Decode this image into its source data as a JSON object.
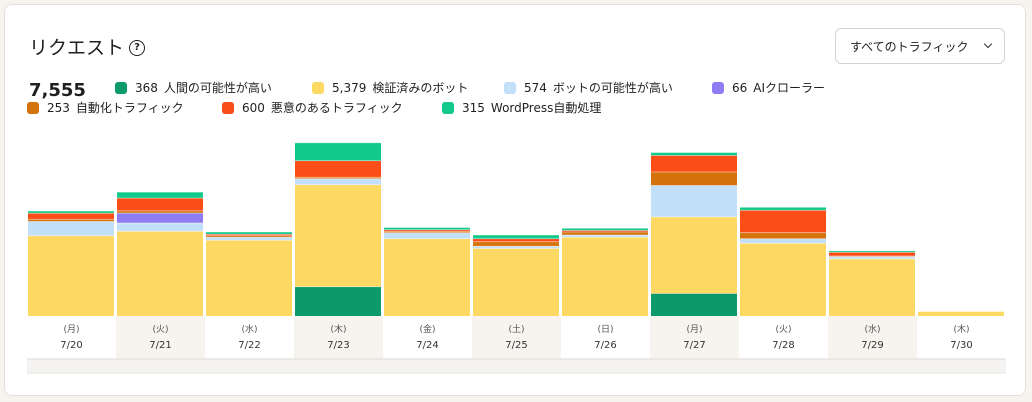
{
  "header": {
    "title": "リクエスト",
    "help_icon": "question-circle-icon",
    "filter_label": "すべてのトラフィック",
    "filter_icon": "chevron-down-icon"
  },
  "summary": {
    "total": "7,555"
  },
  "legend": [
    {
      "count": "368",
      "label": "人間の可能性が高い",
      "color": "#0d9a6b"
    },
    {
      "count": "5,379",
      "label": "検証済みのボット",
      "color": "#fdd862"
    },
    {
      "count": "574",
      "label": "ボットの可能性が高い",
      "color": "#c3e0fb"
    },
    {
      "count": "66",
      "label": "AIクローラー",
      "color": "#8e7cf0"
    },
    {
      "count": "253",
      "label": "自動化トラフィック",
      "color": "#d4730c"
    },
    {
      "count": "600",
      "label": "悪意のあるトラフィック",
      "color": "#fb4d17"
    },
    {
      "count": "315",
      "label": "WordPress自動処理",
      "color": "#10c98a"
    }
  ],
  "chart_data": {
    "type": "bar",
    "stacked": true,
    "title": "リクエスト",
    "categories": [
      "7/20",
      "7/21",
      "7/22",
      "7/23",
      "7/24",
      "7/25",
      "7/26",
      "7/27",
      "7/28",
      "7/29",
      "7/30"
    ],
    "day_labels": [
      "(月)",
      "(火)",
      "(水)",
      "(木)",
      "(金)",
      "(土)",
      "(日)",
      "(月)",
      "(火)",
      "(水)",
      "(木)"
    ],
    "highlighted_columns": [
      1,
      3,
      5,
      7,
      9
    ],
    "series": [
      {
        "name": "人間の可能性が高い",
        "color": "#0d9a6b",
        "values": [
          0,
          0,
          0,
          195,
          0,
          0,
          0,
          150,
          0,
          0,
          0
        ]
      },
      {
        "name": "検証済みのボット",
        "color": "#fdd862",
        "values": [
          535,
          565,
          505,
          680,
          515,
          450,
          525,
          510,
          485,
          380,
          30
        ]
      },
      {
        "name": "ボットの可能性が高い",
        "color": "#c3e0fb",
        "values": [
          95,
          55,
          20,
          40,
          40,
          15,
          15,
          210,
          30,
          15,
          0
        ]
      },
      {
        "name": "AIクローラー",
        "color": "#8e7cf0",
        "values": [
          0,
          66,
          0,
          0,
          0,
          0,
          0,
          0,
          0,
          0,
          0
        ]
      },
      {
        "name": "自動化トラフィック",
        "color": "#d4730c",
        "values": [
          15,
          15,
          10,
          10,
          10,
          30,
          20,
          90,
          40,
          5,
          0
        ]
      },
      {
        "name": "悪意のあるトラフィック",
        "color": "#fb4d17",
        "values": [
          40,
          85,
          10,
          110,
          10,
          20,
          10,
          110,
          150,
          25,
          0
        ]
      },
      {
        "name": "WordPress自動処理",
        "color": "#10c98a",
        "values": [
          15,
          40,
          15,
          120,
          15,
          25,
          15,
          20,
          20,
          10,
          0
        ]
      }
    ],
    "ylim": [
      0,
      1200
    ],
    "grid": false,
    "legend_position": "top-left"
  }
}
